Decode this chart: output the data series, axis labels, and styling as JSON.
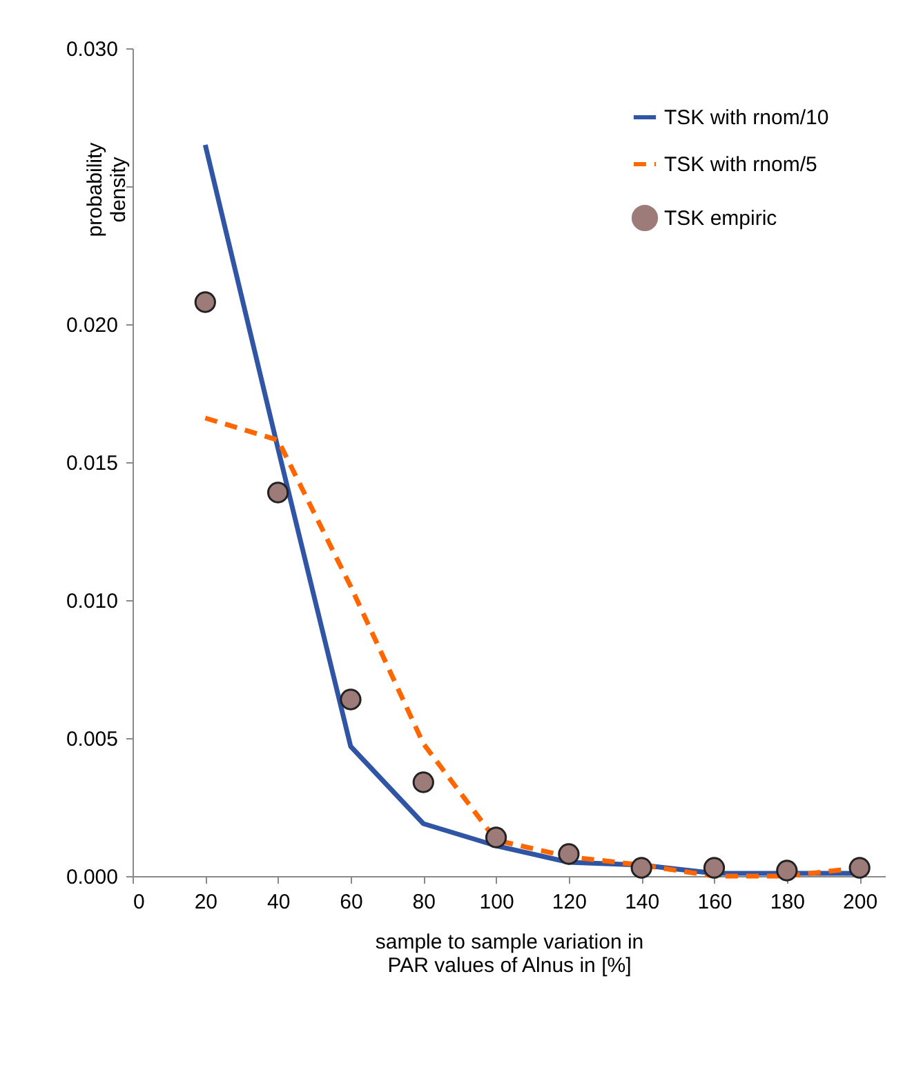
{
  "chart_data": {
    "type": "line",
    "xlabel": "sample to sample variation in\nPAR values of Alnus in [%]",
    "ylabel": "probability\ndensity",
    "x": [
      20,
      40,
      60,
      80,
      100,
      120,
      140,
      160,
      180,
      200
    ],
    "series": [
      {
        "name": "TSK with rnom/10",
        "color": "#2f55a4",
        "line_style": "solid",
        "marker": "none",
        "values": [
          0.0265,
          0.0155,
          0.0047,
          0.0019,
          0.0011,
          0.0005,
          0.0004,
          0.0001,
          0.0001,
          0.0001
        ]
      },
      {
        "name": "TSK with rnom/5",
        "color": "#ff6600",
        "line_style": "dashed",
        "marker": "none",
        "values": [
          0.0166,
          0.0158,
          0.0105,
          0.0048,
          0.0013,
          0.0007,
          0.0004,
          0.0,
          0.0,
          0.0003
        ]
      },
      {
        "name": "TSK empiric",
        "type": "scatter",
        "color": "#9c7b78",
        "marker": "circle",
        "values": [
          0.0208,
          0.0139,
          0.0064,
          0.0034,
          0.0014,
          0.0008,
          0.0003,
          0.0003,
          0.0002,
          0.0003
        ]
      }
    ],
    "xlim": [
      0,
      207
    ],
    "xticks": [
      0,
      20,
      40,
      60,
      80,
      100,
      120,
      140,
      160,
      180,
      200
    ],
    "ylim": [
      0,
      0.03
    ],
    "yticks": [
      {
        "value": 0,
        "label": "0.000"
      },
      {
        "value": 0.005,
        "label": "0.005"
      },
      {
        "value": 0.01,
        "label": "0.010"
      },
      {
        "value": 0.015,
        "label": "0.015"
      },
      {
        "value": 0.02,
        "label": "0.020"
      },
      {
        "value": 0.025,
        "label": null
      },
      {
        "value": 0.03,
        "label": "0.030"
      }
    ],
    "grid": false,
    "legend": "top right"
  }
}
